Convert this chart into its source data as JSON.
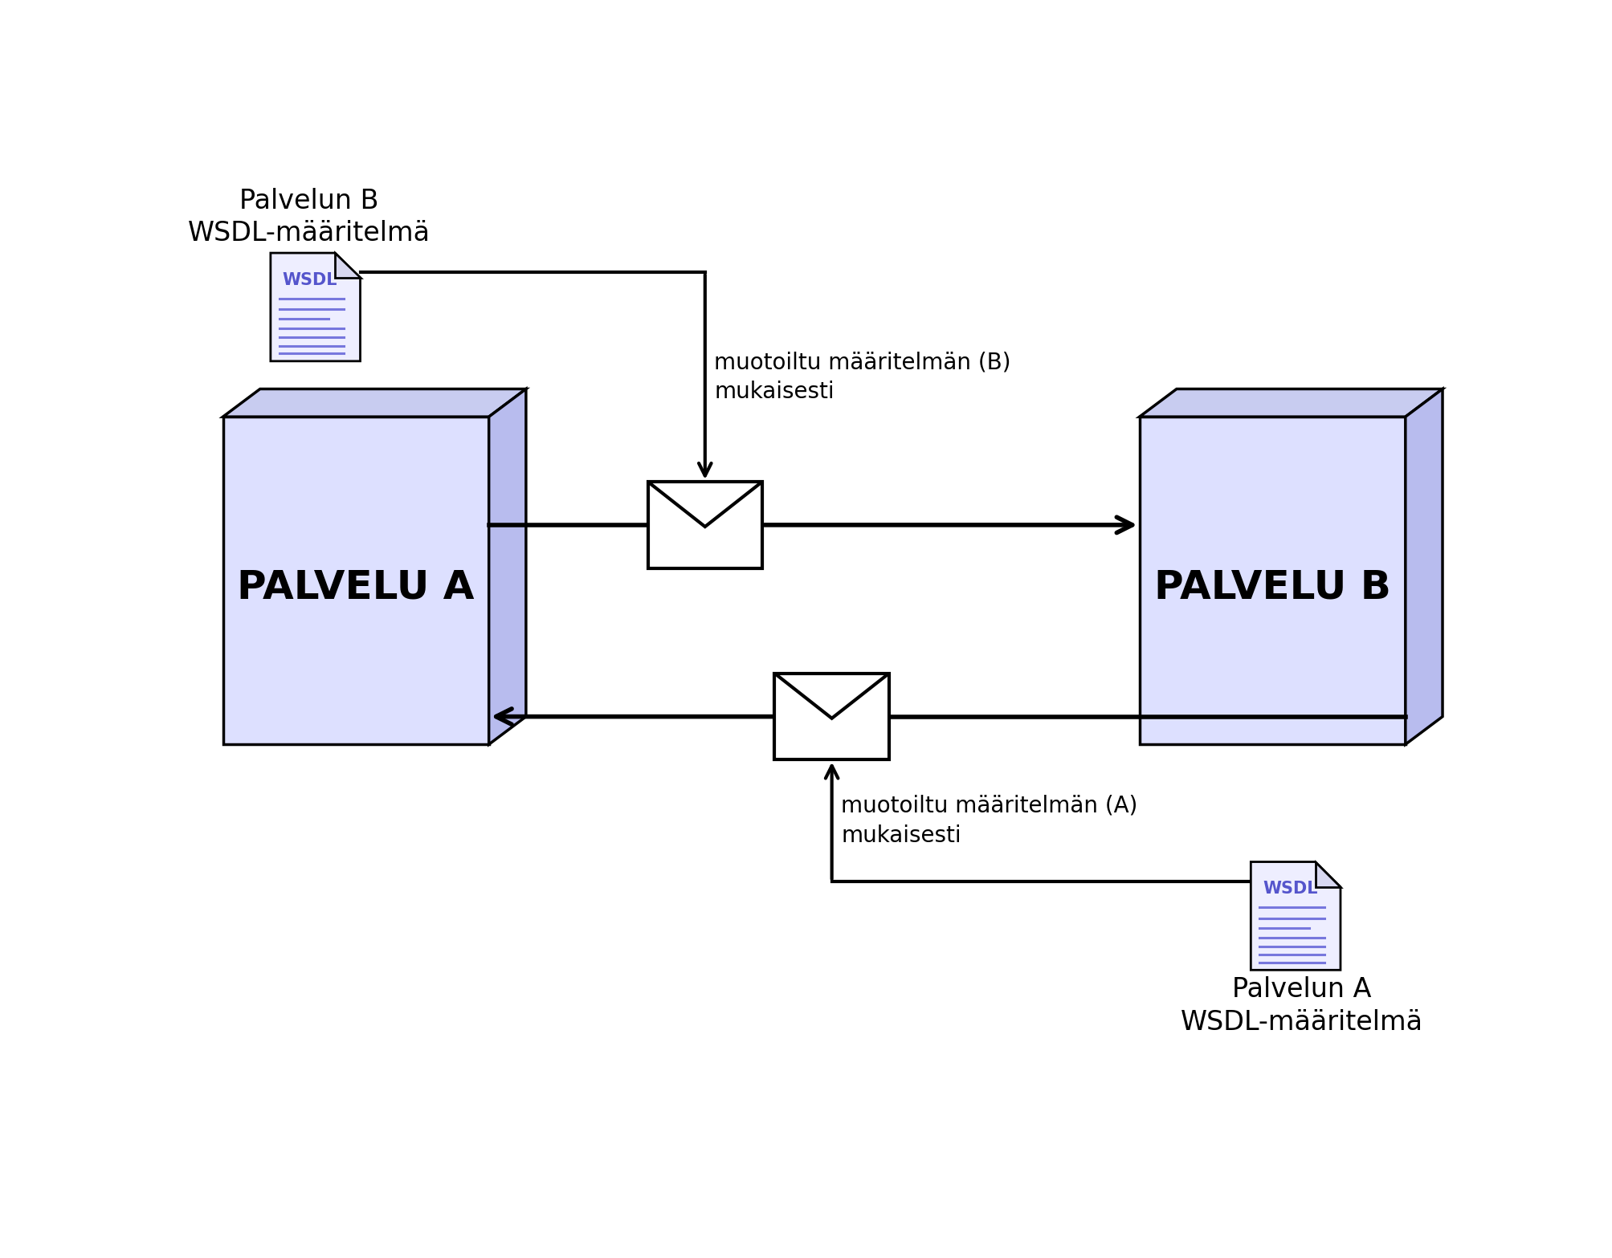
{
  "bg_color": "#ffffff",
  "box_face_color": "#dde0ff",
  "box_top_color": "#c8ccf0",
  "box_side_color": "#b8bcee",
  "box_edge_color": "#000000",
  "doc_face_color": "#eeeeff",
  "doc_fold_color": "#d8d8f0",
  "doc_line_color": "#7777dd",
  "doc_text_color": "#5555cc",
  "envelope_color": "#ffffff",
  "envelope_edge_color": "#000000",
  "arrow_color": "#000000",
  "text_color": "#000000",
  "palvelu_a_label": "PALVELU A",
  "palvelu_b_label": "PALVELU B",
  "wsdl_b_label": "Palvelun B\nWSDL-määritelmä",
  "wsdl_a_label": "Palvelun A\nWSDL-määritelmä",
  "arrow_top_label": "muotoiltu määritelmän (B)\nmukaisesti",
  "arrow_bot_label": "muotoiltu määritelmän (A)\nmukaisesti",
  "wsdl_text": "WSDL",
  "figw": 20.08,
  "figh": 15.67,
  "dpi": 100
}
